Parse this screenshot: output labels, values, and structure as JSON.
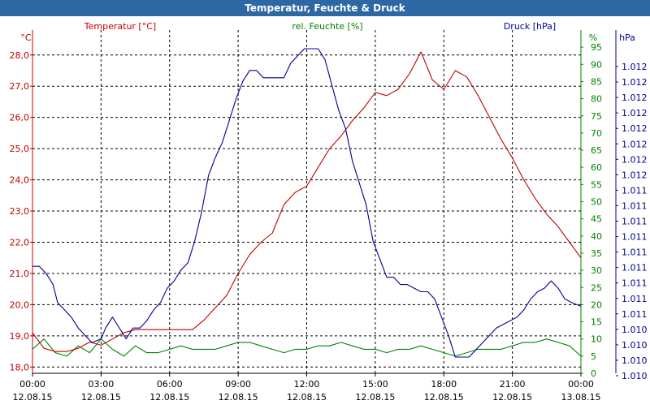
{
  "window": {
    "title": "Temperatur, Feuchte & Druck"
  },
  "chart_data": {
    "type": "line",
    "title": "Temperatur, Feuchte & Druck",
    "x_ticks": [
      {
        "time": "00:00",
        "date": "12.08.15"
      },
      {
        "time": "03:00",
        "date": "12.08.15"
      },
      {
        "time": "06:00",
        "date": "12.08.15"
      },
      {
        "time": "09:00",
        "date": "12.08.15"
      },
      {
        "time": "12:00",
        "date": "12.08.15"
      },
      {
        "time": "15:00",
        "date": "12.08.15"
      },
      {
        "time": "18:00",
        "date": "12.08.15"
      },
      {
        "time": "21:00",
        "date": "12.08.15"
      },
      {
        "time": "00:00",
        "date": "13.08.15"
      }
    ],
    "x_range_hours": [
      0,
      24
    ],
    "axes": {
      "temperature": {
        "unit": "°C",
        "series_label": "Temperatur [°C]",
        "color": "#c00000",
        "range": [
          17.8,
          28.8
        ],
        "ticks": [
          "18,0",
          "19,0",
          "20,0",
          "21,0",
          "22,0",
          "23,0",
          "24,0",
          "25,0",
          "26,0",
          "27,0",
          "28,0"
        ]
      },
      "humidity": {
        "unit": "%",
        "series_label": "rel. Feuchte [%]",
        "color": "#008000",
        "range": [
          0,
          100
        ],
        "ticks": [
          "0",
          "5",
          "10",
          "15",
          "20",
          "25",
          "30",
          "35",
          "40",
          "45",
          "50",
          "55",
          "60",
          "65",
          "70",
          "75",
          "80",
          "85",
          "90",
          "95"
        ]
      },
      "pressure": {
        "unit": "hPa",
        "series_label": "Druck [hPa]",
        "color": "#000090",
        "ticks": [
          "1.010",
          "1.010",
          "1.010",
          "1.010",
          "1.011",
          "1.011",
          "1.011",
          "1.011",
          "1.011",
          "1.011",
          "1.011",
          "1.011",
          "1.011",
          "1.012",
          "1.012",
          "1.012",
          "1.012",
          "1.012",
          "1.012",
          "1.012",
          "1.012"
        ]
      }
    },
    "series": [
      {
        "name": "Temperatur [°C]",
        "axis": "temperature",
        "color": "#c00000",
        "x": [
          0,
          0.5,
          1,
          1.5,
          2,
          2.5,
          3,
          3.5,
          4,
          4.5,
          5,
          5.5,
          6,
          6.5,
          7,
          7.5,
          8,
          8.5,
          9,
          9.5,
          10,
          10.5,
          11,
          11.5,
          12,
          12.5,
          13,
          13.5,
          14,
          14.5,
          15,
          15.5,
          16,
          16.5,
          17,
          17.5,
          18,
          18.5,
          19,
          19.5,
          20,
          20.5,
          21,
          21.5,
          22,
          22.5,
          23,
          23.5,
          24
        ],
        "values": [
          19.1,
          18.6,
          18.5,
          18.5,
          18.6,
          18.8,
          18.7,
          18.9,
          19.1,
          19.2,
          19.2,
          19.2,
          19.2,
          19.2,
          19.2,
          19.5,
          19.9,
          20.3,
          21.0,
          21.6,
          22.0,
          22.3,
          23.2,
          23.6,
          23.8,
          24.4,
          25.0,
          25.4,
          25.9,
          26.3,
          26.8,
          26.7,
          26.9,
          27.4,
          28.1,
          27.2,
          26.9,
          27.5,
          27.3,
          26.7,
          26.0,
          25.3,
          24.7,
          24.0,
          23.4,
          22.9,
          22.5,
          22.0,
          21.5
        ]
      },
      {
        "name": "rel. Feuchte [%]",
        "axis": "humidity",
        "color": "#008000",
        "x": [
          0,
          0.5,
          1,
          1.5,
          2,
          2.5,
          3,
          3.5,
          4,
          4.5,
          5,
          5.5,
          6,
          6.5,
          7,
          7.5,
          8,
          8.5,
          9,
          9.5,
          10,
          10.5,
          11,
          11.5,
          12,
          12.5,
          13,
          13.5,
          14,
          14.5,
          15,
          15.5,
          16,
          16.5,
          17,
          17.5,
          18,
          18.5,
          19,
          19.5,
          20,
          20.5,
          21,
          21.5,
          22,
          22.5,
          23,
          23.5,
          24
        ],
        "values": [
          7,
          10,
          6,
          5,
          8,
          6,
          10,
          7,
          5,
          8,
          6,
          6,
          7,
          8,
          7,
          7,
          7,
          8,
          9,
          9,
          8,
          7,
          6,
          7,
          7,
          8,
          8,
          9,
          8,
          7,
          7,
          6,
          7,
          7,
          8,
          7,
          6,
          5,
          6,
          7,
          7,
          7,
          8,
          9,
          9,
          10,
          9,
          8,
          5
        ]
      },
      {
        "name": "Druck [hPa]",
        "axis": "pressure",
        "color": "#000090",
        "x": [
          0,
          0.3,
          0.6,
          0.9,
          1.1,
          1.4,
          1.7,
          2,
          2.3,
          2.6,
          3,
          3.2,
          3.5,
          3.8,
          4.1,
          4.4,
          4.7,
          5,
          5.3,
          5.6,
          5.9,
          6.2,
          6.5,
          6.8,
          7.1,
          7.4,
          7.7,
          8,
          8.3,
          8.6,
          8.9,
          9.2,
          9.5,
          9.8,
          10.1,
          10.4,
          10.7,
          11,
          11.3,
          11.6,
          11.9,
          12.2,
          12.5,
          12.8,
          13.1,
          13.4,
          13.7,
          14,
          14.3,
          14.6,
          14.9,
          15.2,
          15.5,
          15.8,
          16.1,
          16.4,
          16.7,
          17,
          17.3,
          17.6,
          17.9,
          18.2,
          18.5,
          18.8,
          19.1,
          19.4,
          19.7,
          20,
          20.3,
          20.6,
          20.9,
          21.2,
          21.5,
          21.8,
          22.1,
          22.4,
          22.7,
          23,
          23.3,
          23.6,
          24
        ],
        "values": [
          1.01118,
          1.01118,
          1.01116,
          1.01113,
          1.01108,
          1.01106,
          1.01104,
          1.01101,
          1.01099,
          1.01097,
          1.01098,
          1.01101,
          1.01104,
          1.01101,
          1.01098,
          1.01101,
          1.01101,
          1.01103,
          1.01106,
          1.01108,
          1.01112,
          1.01114,
          1.01117,
          1.01119,
          1.01125,
          1.01133,
          1.01143,
          1.01148,
          1.01152,
          1.01158,
          1.01164,
          1.01169,
          1.01172,
          1.01172,
          1.0117,
          1.0117,
          1.0117,
          1.0117,
          1.01174,
          1.01176,
          1.01178,
          1.01178,
          1.01178,
          1.01175,
          1.01168,
          1.01161,
          1.01156,
          1.01147,
          1.01141,
          1.01135,
          1.01125,
          1.0112,
          1.01115,
          1.01115,
          1.01113,
          1.01113,
          1.01112,
          1.01111,
          1.01111,
          1.01109,
          1.01104,
          1.01099,
          1.01093,
          1.01093,
          1.01093,
          1.01095,
          1.01097,
          1.01099,
          1.01101,
          1.01102,
          1.01103,
          1.01104,
          1.01106,
          1.01109,
          1.01111,
          1.01112,
          1.01114,
          1.01112,
          1.01109,
          1.01108,
          1.01107
        ]
      }
    ]
  }
}
